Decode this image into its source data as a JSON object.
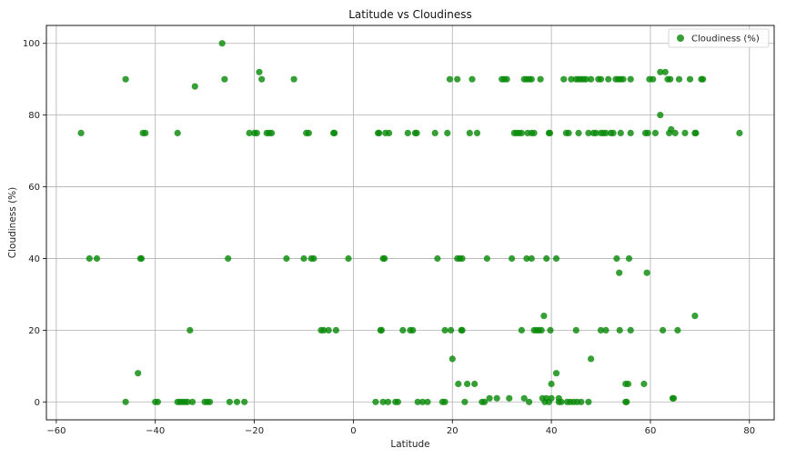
{
  "chart_data": {
    "type": "scatter",
    "title": "Latitude vs Cloudiness",
    "xlabel": "Latitude",
    "ylabel": "Cloudiness (%)",
    "xlim": [
      -62,
      85
    ],
    "ylim": [
      -5,
      105
    ],
    "xticks": [
      -60,
      -40,
      -20,
      0,
      20,
      40,
      60,
      80
    ],
    "yticks": [
      0,
      20,
      40,
      60,
      80,
      100
    ],
    "grid": true,
    "legend_position": "top-right",
    "color": "#0a8a0a",
    "series": [
      {
        "name": "Cloudiness (%)",
        "points": [
          [
            -55,
            75
          ],
          [
            -46,
            90
          ],
          [
            -53.3,
            40
          ],
          [
            -51.8,
            40
          ],
          [
            -43.5,
            8
          ],
          [
            -43,
            40
          ],
          [
            -42.8,
            40
          ],
          [
            -42.5,
            75
          ],
          [
            -42,
            75
          ],
          [
            -46,
            0
          ],
          [
            -40,
            0
          ],
          [
            -39.5,
            0
          ],
          [
            -35.5,
            75
          ],
          [
            -35.5,
            0
          ],
          [
            -35,
            0
          ],
          [
            -34.5,
            0
          ],
          [
            -34,
            0
          ],
          [
            -33.5,
            0
          ],
          [
            -33,
            20
          ],
          [
            -32.5,
            0
          ],
          [
            -32,
            88
          ],
          [
            -30,
            0
          ],
          [
            -29.5,
            0
          ],
          [
            -29,
            0
          ],
          [
            -26.5,
            100
          ],
          [
            -26,
            90
          ],
          [
            -25.3,
            40
          ],
          [
            -25,
            0
          ],
          [
            -23.5,
            0
          ],
          [
            -22,
            0
          ],
          [
            -21,
            75
          ],
          [
            -20,
            75
          ],
          [
            -19.5,
            75
          ],
          [
            -19,
            92
          ],
          [
            -18.5,
            90
          ],
          [
            -17.5,
            75
          ],
          [
            -17,
            75
          ],
          [
            -16.5,
            75
          ],
          [
            -13.5,
            40
          ],
          [
            -12,
            90
          ],
          [
            -10,
            40
          ],
          [
            -9.5,
            75
          ],
          [
            -9,
            75
          ],
          [
            -8.5,
            40
          ],
          [
            -8,
            40
          ],
          [
            -6.5,
            20
          ],
          [
            -6,
            20
          ],
          [
            -5,
            20
          ],
          [
            -4,
            75
          ],
          [
            -3.8,
            75
          ],
          [
            -3.5,
            20
          ],
          [
            -1,
            40
          ],
          [
            4.5,
            0
          ],
          [
            5,
            75
          ],
          [
            5.2,
            75
          ],
          [
            5.5,
            20
          ],
          [
            5.7,
            20
          ],
          [
            6,
            40
          ],
          [
            6,
            0
          ],
          [
            6.3,
            40
          ],
          [
            6.5,
            75
          ],
          [
            7,
            0
          ],
          [
            7.2,
            75
          ],
          [
            8.5,
            0
          ],
          [
            9,
            0
          ],
          [
            10,
            20
          ],
          [
            11,
            75
          ],
          [
            11.5,
            20
          ],
          [
            12,
            20
          ],
          [
            12.5,
            75
          ],
          [
            12.8,
            75
          ],
          [
            13,
            0
          ],
          [
            14,
            0
          ],
          [
            15,
            0
          ],
          [
            16.5,
            75
          ],
          [
            17,
            40
          ],
          [
            18,
            0
          ],
          [
            18.5,
            0
          ],
          [
            18.5,
            20
          ],
          [
            19,
            75
          ],
          [
            19.5,
            90
          ],
          [
            19.7,
            20
          ],
          [
            20,
            12
          ],
          [
            21,
            90
          ],
          [
            21,
            40
          ],
          [
            21.2,
            5
          ],
          [
            21.5,
            40
          ],
          [
            21.8,
            20
          ],
          [
            22,
            40
          ],
          [
            22,
            20
          ],
          [
            22.5,
            0
          ],
          [
            23,
            5
          ],
          [
            23.5,
            75
          ],
          [
            24,
            90
          ],
          [
            24.5,
            5
          ],
          [
            25,
            75
          ],
          [
            26,
            0
          ],
          [
            26.5,
            0
          ],
          [
            27,
            40
          ],
          [
            27.5,
            1
          ],
          [
            29,
            1
          ],
          [
            30,
            90
          ],
          [
            30.5,
            90
          ],
          [
            31,
            90
          ],
          [
            31.5,
            1
          ],
          [
            32,
            40
          ],
          [
            32.5,
            75
          ],
          [
            33,
            75
          ],
          [
            33.5,
            75
          ],
          [
            34,
            20
          ],
          [
            34,
            75
          ],
          [
            34.5,
            90
          ],
          [
            34.5,
            1
          ],
          [
            35,
            40
          ],
          [
            35,
            90
          ],
          [
            35.2,
            75
          ],
          [
            35.5,
            90
          ],
          [
            35.5,
            0
          ],
          [
            36,
            40
          ],
          [
            36,
            75
          ],
          [
            36,
            90
          ],
          [
            36.5,
            20
          ],
          [
            36.5,
            75
          ],
          [
            37,
            20
          ],
          [
            37.5,
            20
          ],
          [
            37.8,
            90
          ],
          [
            38,
            20
          ],
          [
            38.2,
            1
          ],
          [
            38.5,
            24
          ],
          [
            38.7,
            0
          ],
          [
            39,
            40
          ],
          [
            39,
            1
          ],
          [
            39.5,
            0
          ],
          [
            39.5,
            75
          ],
          [
            39.7,
            75
          ],
          [
            39.8,
            20
          ],
          [
            40,
            5
          ],
          [
            40,
            1
          ],
          [
            41,
            40
          ],
          [
            41,
            8
          ],
          [
            41.5,
            1
          ],
          [
            41.5,
            0
          ],
          [
            42,
            0
          ],
          [
            42.5,
            90
          ],
          [
            43,
            75
          ],
          [
            43.2,
            0
          ],
          [
            43.5,
            75
          ],
          [
            43.8,
            0
          ],
          [
            44,
            90
          ],
          [
            44.5,
            0
          ],
          [
            45,
            90
          ],
          [
            45,
            20
          ],
          [
            45.2,
            0
          ],
          [
            45.5,
            90
          ],
          [
            45.5,
            75
          ],
          [
            46,
            90
          ],
          [
            46,
            0
          ],
          [
            46.5,
            90
          ],
          [
            47,
            90
          ],
          [
            47.5,
            0
          ],
          [
            47.5,
            75
          ],
          [
            48,
            12
          ],
          [
            48,
            90
          ],
          [
            48.5,
            75
          ],
          [
            49,
            75
          ],
          [
            49.5,
            90
          ],
          [
            50,
            90
          ],
          [
            50,
            20
          ],
          [
            50,
            75
          ],
          [
            50.5,
            75
          ],
          [
            51,
            20
          ],
          [
            51,
            75
          ],
          [
            51.5,
            90
          ],
          [
            52,
            75
          ],
          [
            52.5,
            75
          ],
          [
            53,
            90
          ],
          [
            53.2,
            40
          ],
          [
            53.5,
            90
          ],
          [
            53.7,
            36
          ],
          [
            53.8,
            20
          ],
          [
            54,
            75
          ],
          [
            54,
            90
          ],
          [
            54.5,
            90
          ],
          [
            55,
            0
          ],
          [
            55,
            5
          ],
          [
            55.2,
            0
          ],
          [
            55.5,
            5
          ],
          [
            55.7,
            40
          ],
          [
            56,
            90
          ],
          [
            56,
            20
          ],
          [
            56,
            75
          ],
          [
            58.7,
            5
          ],
          [
            59,
            75
          ],
          [
            59.3,
            36
          ],
          [
            59.5,
            75
          ],
          [
            59.8,
            90
          ],
          [
            60.5,
            90
          ],
          [
            61,
            75
          ],
          [
            62,
            80
          ],
          [
            62,
            92
          ],
          [
            62.5,
            20
          ],
          [
            63,
            92
          ],
          [
            63.5,
            90
          ],
          [
            63.8,
            75
          ],
          [
            64,
            90
          ],
          [
            64.2,
            76
          ],
          [
            64.5,
            1
          ],
          [
            64.7,
            1
          ],
          [
            65,
            75
          ],
          [
            65.5,
            20
          ],
          [
            65.8,
            90
          ],
          [
            67,
            75
          ],
          [
            68,
            90
          ],
          [
            69,
            75
          ],
          [
            69,
            24
          ],
          [
            69.2,
            75
          ],
          [
            70.3,
            90
          ],
          [
            70.6,
            90
          ],
          [
            78,
            75
          ]
        ]
      }
    ]
  }
}
